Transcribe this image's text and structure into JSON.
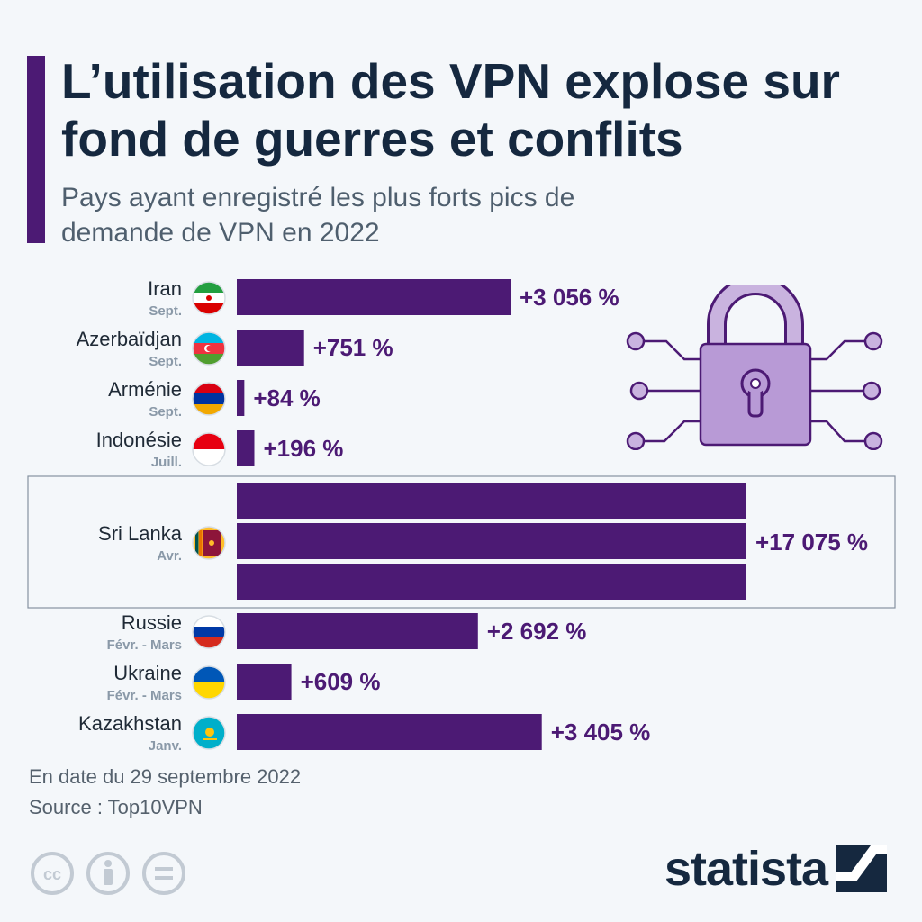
{
  "header": {
    "title": "L’utilisation des VPN explose sur fond de guerres et conflits",
    "subtitle": "Pays ayant enregistré les plus forts pics de demande de VPN en 2022"
  },
  "colors": {
    "bar": "#4c1a74",
    "title": "#15283f",
    "accent": "#4c1a74",
    "highlight_box_border": "#8592a0"
  },
  "chart_data": {
    "type": "bar",
    "orientation": "horizontal",
    "unit": "%",
    "categories": [
      "Iran",
      "Azerbaïdjan",
      "Arménie",
      "Indonésie",
      "Sri Lanka",
      "Russie",
      "Ukraine",
      "Kazakhstan"
    ],
    "periods": [
      "Sept.",
      "Sept.",
      "Sept.",
      "Juill.",
      "Avr.",
      "Févr. - Mars",
      "Févr. - Mars",
      "Janv."
    ],
    "values": [
      3056,
      751,
      84,
      196,
      17075,
      2692,
      609,
      3405
    ],
    "value_labels": [
      "+3 056 %",
      "+751 %",
      "+84 %",
      "+196 %",
      "+17 075 %",
      "+2 692 %",
      "+609 %",
      "+3 405 %"
    ],
    "flags": [
      "iran-flag-icon",
      "azerbaijan-flag-icon",
      "armenia-flag-icon",
      "indonesia-flag-icon",
      "sri-lanka-flag-icon",
      "russia-flag-icon",
      "ukraine-flag-icon",
      "kazakhstan-flag-icon"
    ],
    "highlighted": "Sri Lanka",
    "highlight_note": "Sri Lanka bar is drawn broken (three stacked segments) to indicate it exceeds the scale",
    "grid": false,
    "legend": "none"
  },
  "notes": {
    "date": "En date du 29 septembre 2022",
    "source": "Source : Top10VPN"
  },
  "footer": {
    "brand": "statista",
    "license_icons": [
      "cc-icon",
      "attribution-icon",
      "no-derivatives-icon"
    ]
  },
  "illustration": "padlock-circuit-icon"
}
